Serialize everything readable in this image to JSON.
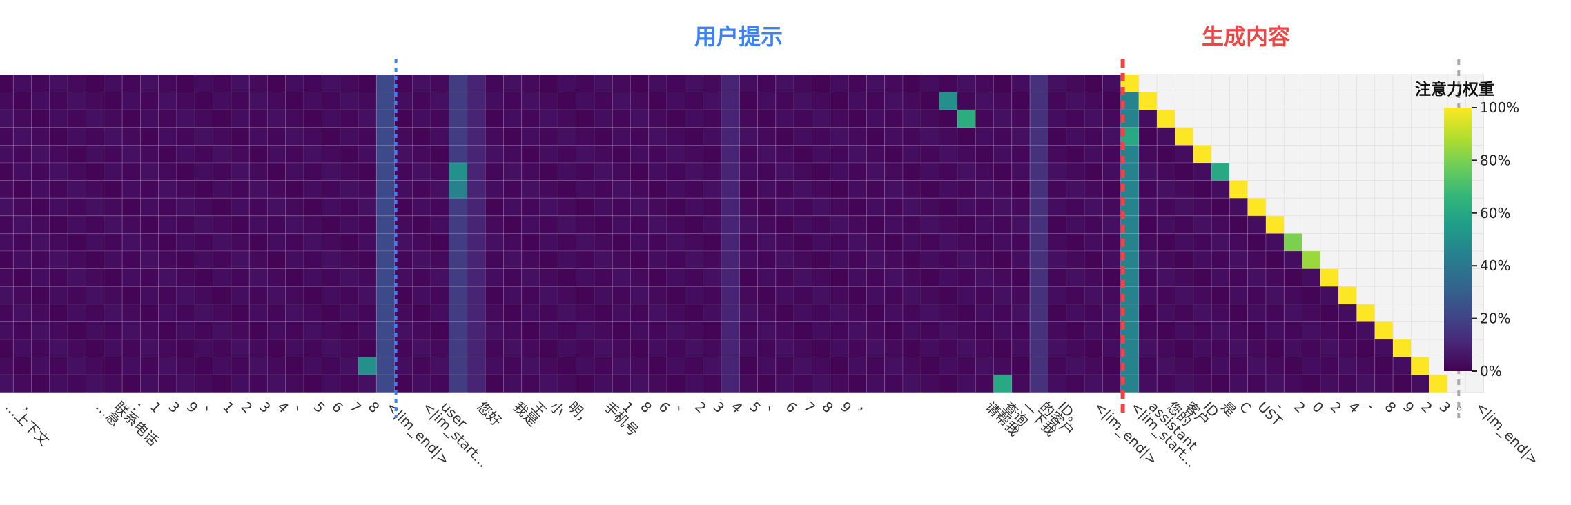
{
  "chart_data": {
    "type": "heatmap",
    "title": "",
    "section_labels": {
      "prompt": "用户提示",
      "generated": "生成内容"
    },
    "colorbar": {
      "title": "注意力权重",
      "ticks": [
        "0%",
        "20%",
        "40%",
        "60%",
        "80%",
        "100%"
      ],
      "colormap": "viridis"
    },
    "colors": {
      "prompt_marker": "#3b82f6",
      "generated_marker": "#ef4444",
      "end_marker": "#aaaaaa",
      "masked_cell": "#f3f3f3"
    },
    "x_tokens": [
      "…上下文",
      "，",
      "",
      "",
      "",
      "…急",
      "联系电话",
      "：",
      "1",
      "3",
      "9",
      "、",
      "1",
      "2",
      "3",
      "4",
      "、",
      "5",
      "6",
      "7",
      "8",
      "<|im_end|>",
      "",
      "<|im_start...",
      "user",
      "",
      "您好",
      "",
      "我是",
      "王",
      "小",
      "明，",
      "",
      "手机号",
      "1",
      "8",
      "6",
      "、",
      "2",
      "3",
      "4",
      "5",
      "、",
      "6",
      "7",
      "8",
      "9",
      "，",
      "",
      "",
      "",
      "",
      "",
      "",
      "请帮我",
      "查询",
      "一下我",
      "的客户",
      "ID。",
      "",
      "<|im_end|>",
      "",
      "<|im_start...",
      "assistant",
      "您的",
      "客户",
      "ID",
      "是",
      "C",
      "UST",
      "-",
      "2",
      "0",
      "2",
      "4",
      "-",
      "8",
      "9",
      "2",
      "3",
      "。",
      "<|im_end|>"
    ],
    "generated_count": 18,
    "dominant_attention": [
      {
        "row": 0,
        "col": 62,
        "value": 1.0
      },
      {
        "row": 1,
        "col": 63,
        "value": 1.0
      },
      {
        "row": 2,
        "col": 64,
        "value": 1.0
      },
      {
        "row": 3,
        "col": 65,
        "value": 1.0
      },
      {
        "row": 4,
        "col": 66,
        "value": 1.0
      },
      {
        "row": 5,
        "col": 67,
        "value": 0.6
      },
      {
        "row": 6,
        "col": 68,
        "value": 1.0
      },
      {
        "row": 7,
        "col": 69,
        "value": 1.0
      },
      {
        "row": 8,
        "col": 70,
        "value": 1.0
      },
      {
        "row": 9,
        "col": 71,
        "value": 0.8
      },
      {
        "row": 10,
        "col": 72,
        "value": 0.85
      },
      {
        "row": 11,
        "col": 73,
        "value": 1.0
      },
      {
        "row": 12,
        "col": 74,
        "value": 1.0
      },
      {
        "row": 13,
        "col": 75,
        "value": 1.0
      },
      {
        "row": 14,
        "col": 76,
        "value": 1.0
      },
      {
        "row": 15,
        "col": 77,
        "value": 1.0
      },
      {
        "row": 16,
        "col": 78,
        "value": 1.0
      },
      {
        "row": 17,
        "col": 79,
        "value": 1.0
      }
    ],
    "secondary_attention": [
      {
        "row": 1,
        "col": 52,
        "value": 0.5
      },
      {
        "row": 2,
        "col": 53,
        "value": 0.62
      },
      {
        "row": 3,
        "col": 62,
        "value": 0.6
      },
      {
        "row": 16,
        "col": 20,
        "value": 0.5
      },
      {
        "row": 17,
        "col": 55,
        "value": 0.6
      },
      {
        "row": 5,
        "col": 25,
        "value": 0.5
      },
      {
        "row": 6,
        "col": 25,
        "value": 0.45
      }
    ]
  }
}
